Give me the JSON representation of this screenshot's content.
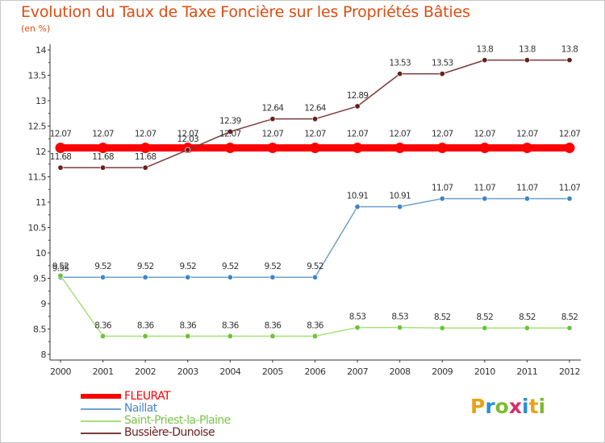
{
  "title": "Evolution du Taux de Taxe Foncière sur les Propriétés Bâties",
  "subtitle": "(en %)",
  "logo": {
    "text": "Proxiti",
    "letter_colors": [
      "#e8a317",
      "#2b8fd6",
      "#7cbb2f",
      "#d62f6b",
      "#2b8fd6",
      "#e8a317",
      "#7cbb2f"
    ]
  },
  "chart_data": {
    "type": "line",
    "x": [
      "2000",
      "2001",
      "2002",
      "2003",
      "2004",
      "2005",
      "2006",
      "2007",
      "2008",
      "2009",
      "2010",
      "2011",
      "2012"
    ],
    "ylim": [
      8,
      14
    ],
    "yticks": [
      "8",
      "8.5",
      "9",
      "9.5",
      "10",
      "10.5",
      "11",
      "11.5",
      "12",
      "12.5",
      "13",
      "13.5",
      "14"
    ],
    "grid": false,
    "legend_position": "bottom-left",
    "series": [
      {
        "name": "FLEURAT",
        "color": "#ff0000",
        "marker_color": "#ff0000",
        "values": [
          12.07,
          12.07,
          12.07,
          12.07,
          12.07,
          12.07,
          12.07,
          12.07,
          12.07,
          12.07,
          12.07,
          12.07,
          12.07
        ],
        "labels": [
          "12.07",
          "12.07",
          "12.07",
          "12.07",
          "12.07",
          "12.07",
          "12.07",
          "12.07",
          "12.07",
          "12.07",
          "12.07",
          "12.07",
          "12.07"
        ]
      },
      {
        "name": "Naillat",
        "color": "#6fa0cc",
        "marker_color": "#3d86c6",
        "values": [
          9.52,
          9.52,
          9.52,
          9.52,
          9.52,
          9.52,
          9.52,
          10.91,
          10.91,
          11.07,
          11.07,
          11.07,
          11.07
        ],
        "labels": [
          "9.52",
          "9.52",
          "9.52",
          "9.52",
          "9.52",
          "9.52",
          "9.52",
          "10.91",
          "10.91",
          "11.07",
          "11.07",
          "11.07",
          "11.07"
        ]
      },
      {
        "name": "Saint-Priest-la-Plaine",
        "color": "#a8e07c",
        "marker_color": "#6cc23a",
        "values": [
          9.55,
          8.36,
          8.36,
          8.36,
          8.36,
          8.36,
          8.36,
          8.53,
          8.53,
          8.52,
          8.52,
          8.52,
          8.52
        ],
        "labels": [
          "9.55",
          "8.36",
          "8.36",
          "8.36",
          "8.36",
          "8.36",
          "8.36",
          "8.53",
          "8.53",
          "8.52",
          "8.52",
          "8.52",
          "8.52"
        ]
      },
      {
        "name": "Bussière-Dunoise",
        "color": "#7a3a3a",
        "marker_color": "#6a1f1f",
        "values": [
          11.68,
          11.68,
          11.68,
          12.03,
          12.39,
          12.64,
          12.64,
          12.89,
          13.53,
          13.53,
          13.8,
          13.8,
          13.8
        ],
        "labels": [
          "11.68",
          "11.68",
          "11.68",
          "12.03",
          "12.39",
          "12.64",
          "12.64",
          "12.89",
          "13.53",
          "13.53",
          "13.8",
          "13.8",
          "13.8"
        ]
      }
    ]
  }
}
